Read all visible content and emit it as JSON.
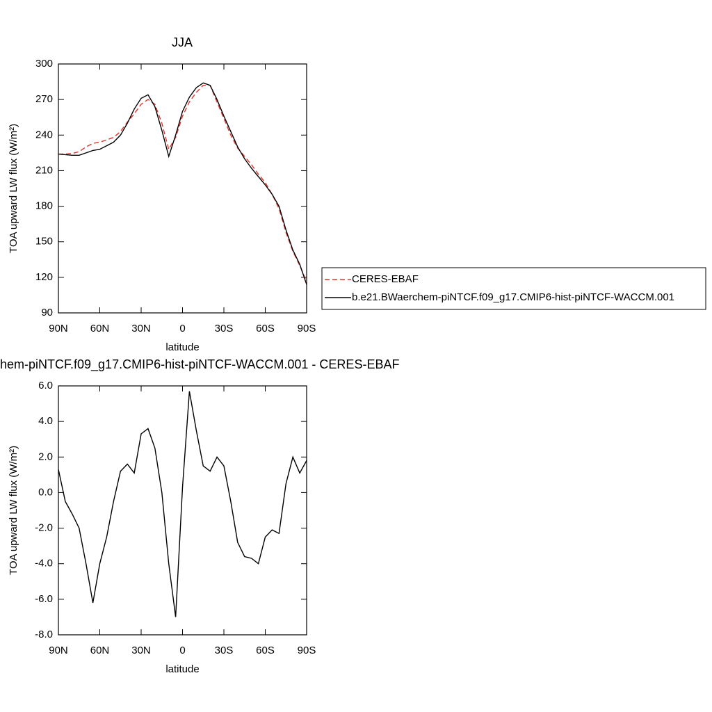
{
  "chart_data": [
    {
      "type": "line",
      "title": "JJA",
      "xlabel": "latitude",
      "ylabel": "TOA upward LW flux (W/m²)",
      "x": [
        90,
        85,
        80,
        75,
        70,
        65,
        60,
        55,
        50,
        45,
        40,
        35,
        30,
        25,
        20,
        15,
        10,
        5,
        0,
        -5,
        -10,
        -15,
        -20,
        -25,
        -30,
        -35,
        -40,
        -45,
        -50,
        -55,
        -60,
        -65,
        -70,
        -75,
        -80,
        -85,
        -90
      ],
      "xlim": [
        90,
        -90
      ],
      "xticks": [
        {
          "value": 90,
          "label": "90N"
        },
        {
          "value": 60,
          "label": "60N"
        },
        {
          "value": 30,
          "label": "30N"
        },
        0,
        {
          "value": -30,
          "label": "30S"
        },
        {
          "value": -60,
          "label": "60S"
        },
        {
          "value": -90,
          "label": "90S"
        }
      ],
      "ylim": [
        90,
        300
      ],
      "yticks": [
        90,
        120,
        150,
        180,
        210,
        240,
        270,
        300
      ],
      "legend": "right",
      "series": [
        {
          "name": "CERES-EBAF",
          "color": "#e8302a",
          "dash": true,
          "values": [
            224,
            224,
            224.5,
            226,
            230,
            233,
            234,
            236,
            238,
            243,
            251,
            258,
            266,
            270,
            266,
            250,
            228,
            238,
            256,
            268,
            276,
            282,
            282,
            268,
            254,
            240,
            229,
            222,
            215,
            207,
            200,
            190,
            178,
            158,
            142,
            130,
            116
          ]
        },
        {
          "name": "b.e21.BWaerchem-piNTCF.f09_g17.CMIP6-hist-piNTCF-WACCM.001",
          "color": "#000000",
          "dash": false,
          "values": [
            224,
            223.5,
            223,
            223,
            225,
            227,
            228,
            231,
            234,
            240,
            250,
            262,
            271,
            274,
            264,
            244,
            222,
            240,
            260,
            272,
            280,
            284,
            282,
            270,
            256,
            243,
            230,
            220,
            212,
            205,
            198,
            190,
            180,
            160,
            143,
            131,
            114
          ]
        }
      ]
    },
    {
      "type": "line",
      "title": "hem-piNTCF.f09_g17.CMIP6-hist-piNTCF-WACCM.001 - CERES-EBAF",
      "xlabel": "latitude",
      "ylabel": "TOA upward LW flux (W/m²)",
      "x": [
        90,
        85,
        80,
        75,
        70,
        65,
        60,
        55,
        50,
        45,
        40,
        35,
        30,
        25,
        20,
        15,
        10,
        5,
        0,
        -5,
        -10,
        -15,
        -20,
        -25,
        -30,
        -35,
        -40,
        -45,
        -50,
        -55,
        -60,
        -65,
        -70,
        -75,
        -80,
        -85,
        -90
      ],
      "xlim": [
        90,
        -90
      ],
      "xticks": [
        {
          "value": 90,
          "label": "90N"
        },
        {
          "value": 60,
          "label": "60N"
        },
        {
          "value": 30,
          "label": "30N"
        },
        0,
        {
          "value": -30,
          "label": "30S"
        },
        {
          "value": -60,
          "label": "60S"
        },
        {
          "value": -90,
          "label": "90S"
        }
      ],
      "ylim": [
        -8,
        6
      ],
      "yticks": [
        {
          "value": -8,
          "label": "-8.0"
        },
        {
          "value": -6,
          "label": "-6.0"
        },
        {
          "value": -4,
          "label": "-4.0"
        },
        {
          "value": -2,
          "label": "-2.0"
        },
        {
          "value": 0,
          "label": "0.0"
        },
        {
          "value": 2,
          "label": "2.0"
        },
        {
          "value": 4,
          "label": "4.0"
        },
        {
          "value": 6,
          "label": "6.0"
        }
      ],
      "series": [
        {
          "color": "#000000",
          "dash": false,
          "values": [
            1.3,
            -0.5,
            -1.2,
            -2.0,
            -4.0,
            -6.2,
            -4.0,
            -2.5,
            -0.5,
            1.2,
            1.6,
            1.1,
            3.3,
            3.6,
            2.5,
            0,
            -4,
            -7.0,
            0.3,
            5.7,
            3.5,
            1.5,
            1.2,
            2.0,
            1.5,
            -0.5,
            -2.8,
            -3.6,
            -3.7,
            -4.0,
            -2.5,
            -2.1,
            -2.3,
            0.5,
            2.0,
            1.1,
            1.8
          ]
        }
      ]
    }
  ]
}
